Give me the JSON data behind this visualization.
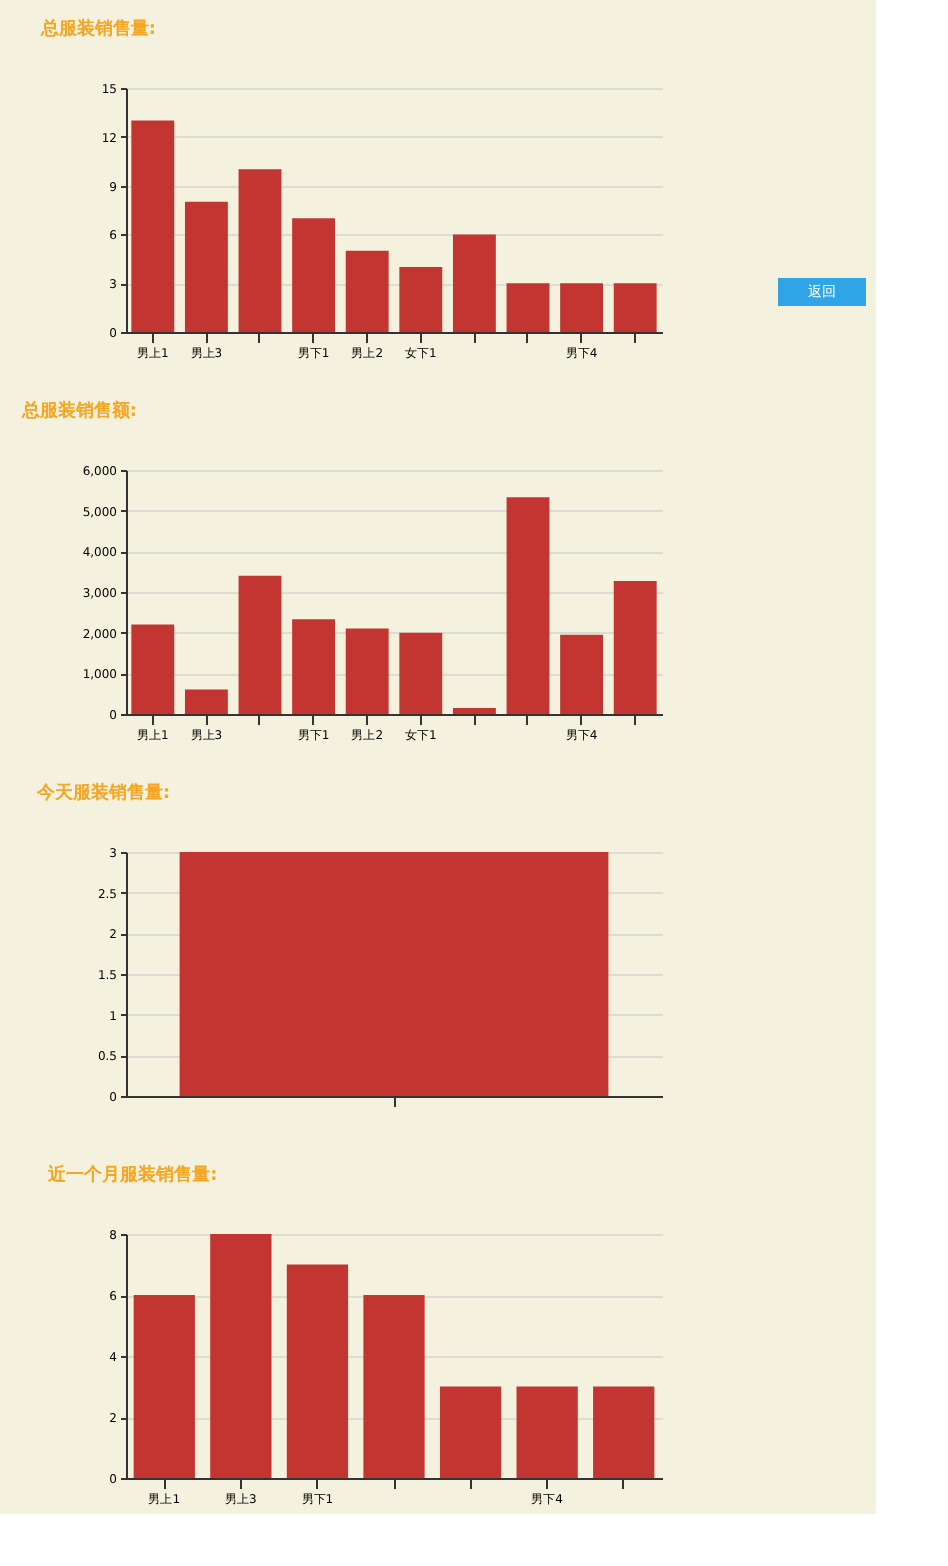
{
  "chart_data": [
    {
      "type": "bar",
      "title": "总服装销售量:",
      "categories": [
        "男上1",
        "男上3",
        null,
        "男下1",
        "男上2",
        "女下1",
        null,
        null,
        "男下4",
        null
      ],
      "values": [
        13,
        8,
        10,
        7,
        5,
        4,
        6,
        3,
        3,
        3
      ],
      "color": "#c23531",
      "ylim": [
        0,
        15
      ],
      "yticks": [
        0,
        3,
        6,
        9,
        12,
        15
      ],
      "grid": "y",
      "annotations": [
        "返回"
      ]
    },
    {
      "type": "bar",
      "title": "总服装销售额:",
      "categories": [
        "男上1",
        "男上3",
        null,
        "男下1",
        "男上2",
        "女下1",
        null,
        null,
        "男下4",
        null
      ],
      "values": [
        2200,
        600,
        3400,
        2330,
        2100,
        2000,
        150,
        5330,
        1950,
        3270
      ],
      "color": "#c23531",
      "ylim": [
        0,
        6000
      ],
      "yticks": [
        0,
        {
          "value": 1000,
          "label": "1,000"
        },
        {
          "value": 2000,
          "label": "2,000"
        },
        {
          "value": 3000,
          "label": "3,000"
        },
        {
          "value": 4000,
          "label": "4,000"
        },
        {
          "value": 5000,
          "label": "5,000"
        },
        {
          "value": 6000,
          "label": "6,000"
        }
      ],
      "grid": "y"
    },
    {
      "type": "bar",
      "title": "今天服装销售量:",
      "categories": [
        null
      ],
      "values": [
        3
      ],
      "color": "#c23531",
      "ylim": [
        0,
        3
      ],
      "yticks": [
        0,
        0.5,
        1,
        1.5,
        2,
        2.5,
        3
      ],
      "grid": "y"
    },
    {
      "type": "bar",
      "title": "近一个月服装销售量:",
      "categories": [
        "男上1",
        "男上3",
        "男下1",
        null,
        null,
        "男下4",
        null
      ],
      "values": [
        6,
        8,
        7,
        6,
        3,
        3,
        3
      ],
      "color": "#c23531",
      "ylim": [
        0,
        8
      ],
      "yticks": [
        0,
        2,
        4,
        6,
        8
      ],
      "grid": "y"
    }
  ]
}
